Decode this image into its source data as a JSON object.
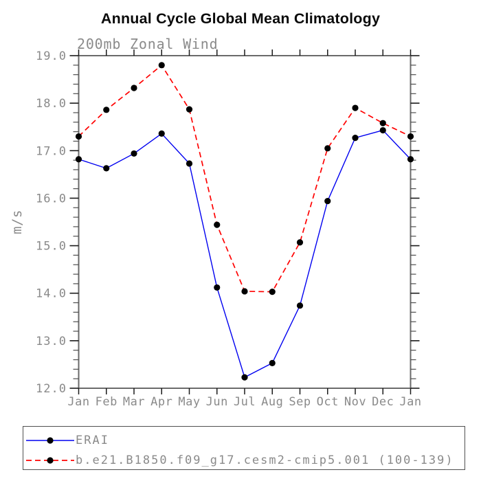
{
  "page": {
    "title": "Annual Cycle Global Mean Climatology"
  },
  "chart_data": {
    "type": "line",
    "title": "Annual Cycle Global Mean Climatology",
    "subtitle": "200mb Zonal Wind",
    "xlabel": "",
    "ylabel": "m/s",
    "categories": [
      "Jan",
      "Feb",
      "Mar",
      "Apr",
      "May",
      "Jun",
      "Jul",
      "Aug",
      "Sep",
      "Oct",
      "Nov",
      "Dec",
      "Jan"
    ],
    "ylim": [
      12.0,
      19.0
    ],
    "yticks": [
      12.0,
      13.0,
      14.0,
      15.0,
      16.0,
      17.0,
      18.0,
      19.0
    ],
    "ytick_labels": [
      "12.0",
      "13.0",
      "14.0",
      "15.0",
      "16.0",
      "17.0",
      "18.0",
      "19.0"
    ],
    "minor_tick_step": 0.2,
    "grid": false,
    "legend_position": "bottom",
    "marker": "filled-circle",
    "marker_color": "#000000",
    "series": [
      {
        "name": "ERAI",
        "style": "solid",
        "color": "#0000f0",
        "values": [
          16.82,
          16.63,
          16.94,
          17.36,
          16.73,
          14.12,
          12.23,
          12.53,
          13.74,
          15.94,
          17.27,
          17.43,
          16.82
        ]
      },
      {
        "name": "b.e21.B1850.f09_g17.cesm2-cmip5.001 (100-139)",
        "style": "dashed",
        "color": "#ff0000",
        "values": [
          17.3,
          17.86,
          18.32,
          18.8,
          17.87,
          15.44,
          14.04,
          14.03,
          15.07,
          17.05,
          17.9,
          17.58,
          17.3
        ]
      }
    ]
  },
  "colors": {
    "background": "#ffffff",
    "title_text": "#0a0a0a",
    "axis_text": "#8a8a8a",
    "frame": "#6a6a6a",
    "major_tick": "#1a1a1a",
    "minor_tick": "#4d4d4d",
    "legend_border": "#4f4f4f",
    "marker": "#000000",
    "series_erai": "#0000f0",
    "series_cesm": "#ff0000"
  }
}
